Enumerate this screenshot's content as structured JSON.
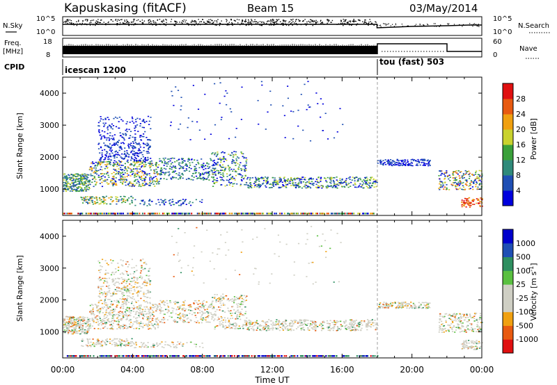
{
  "header": {
    "station": "Kapuskasing (fitACF)",
    "beam": "Beam 15",
    "date": "03/May/2014"
  },
  "noise_panel": {
    "left_label": "N.Sky",
    "right_label": "N.Search",
    "left_ticks": [
      "10^5",
      "10^0"
    ],
    "right_ticks": [
      "10^5",
      "10^0"
    ]
  },
  "freq_panel": {
    "left_label_1": "Freq.",
    "left_label_2": "[MHz]",
    "right_label": "Nave",
    "left_ticks": [
      "18",
      "8"
    ],
    "right_ticks": [
      "60",
      "0"
    ]
  },
  "cpid_panel": {
    "label": "CPID",
    "modes": [
      {
        "name": "icescan 1200",
        "start_hour": 0
      },
      {
        "name": "tou (fast) 503",
        "start_hour": 18
      }
    ]
  },
  "colors": {
    "power_scale": [
      "#0000dd",
      "#1f4fb4",
      "#2f8a7a",
      "#3aa03a",
      "#c9d22e",
      "#f0a010",
      "#e85a10",
      "#e01010"
    ],
    "velocity_scale": [
      "#e01010",
      "#e85a10",
      "#f0a010",
      "#cfcfc4",
      "#cfcfc4",
      "#5ac040",
      "#2e8f60",
      "#1f4fb4",
      "#0000cc"
    ]
  },
  "chart_data": [
    {
      "type": "heatmap",
      "title": "",
      "panel": "power",
      "xlabel": "Time UT",
      "ylabel": "Slant Range [km]",
      "xlim": [
        0,
        24
      ],
      "ylim": [
        180,
        4500
      ],
      "x_ticks": [
        "00:00",
        "04:00",
        "08:00",
        "12:00",
        "16:00",
        "20:00",
        "00:00"
      ],
      "y_ticks": [
        "1000",
        "2000",
        "3000",
        "4000"
      ],
      "colorbar_label": "Power [dB]",
      "colorbar_ticks": [
        "4",
        "8",
        "12",
        "16",
        "20",
        "24",
        "28"
      ],
      "colorbar_range": [
        0,
        30
      ]
    },
    {
      "type": "heatmap",
      "title": "",
      "panel": "velocity",
      "xlabel": "Time UT",
      "ylabel": "Slant Range [km]",
      "xlim": [
        0,
        24
      ],
      "ylim": [
        180,
        4500
      ],
      "x_ticks": [
        "00:00",
        "04:00",
        "08:00",
        "12:00",
        "16:00",
        "20:00",
        "00:00"
      ],
      "y_ticks": [
        "1000",
        "2000",
        "3000",
        "4000"
      ],
      "colorbar_label": "Velocity [m s",
      "colorbar_label_sup": "-1",
      "colorbar_label_end": "]",
      "colorbar_ticks": [
        "1000",
        "500",
        "100",
        "25",
        "-25",
        "-100",
        "-500",
        "-1000"
      ]
    }
  ],
  "axis": {
    "xlabel": "Time UT",
    "x_ticks": [
      "00:00",
      "04:00",
      "08:00",
      "12:00",
      "16:00",
      "20:00",
      "00:00"
    ]
  }
}
